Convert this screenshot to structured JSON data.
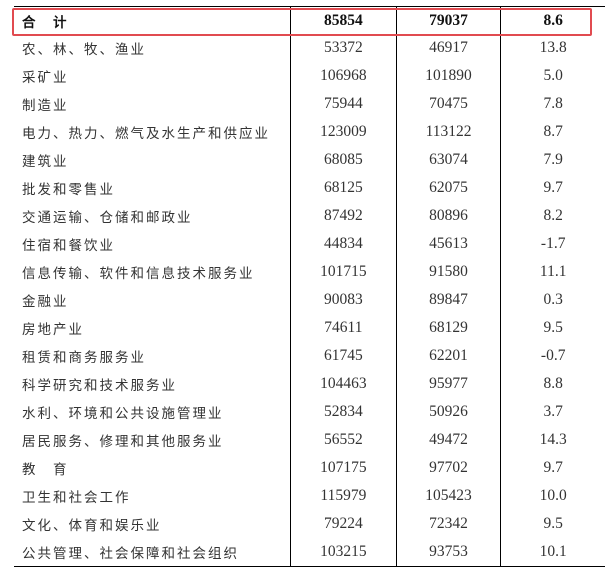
{
  "highlight_color": "#e14b50",
  "total": {
    "label": "合　计",
    "v2023": "85854",
    "v2022": "79037",
    "growth": "8.6"
  },
  "rows": [
    {
      "label": "农、林、牧、渔业",
      "v2023": "53372",
      "v2022": "46917",
      "growth": "13.8"
    },
    {
      "label": "采矿业",
      "v2023": "106968",
      "v2022": "101890",
      "growth": "5.0"
    },
    {
      "label": "制造业",
      "v2023": "75944",
      "v2022": "70475",
      "growth": "7.8"
    },
    {
      "label": "电力、热力、燃气及水生产和供应业",
      "v2023": "123009",
      "v2022": "113122",
      "growth": "8.7"
    },
    {
      "label": "建筑业",
      "v2023": "68085",
      "v2022": "63074",
      "growth": "7.9"
    },
    {
      "label": "批发和零售业",
      "v2023": "68125",
      "v2022": "62075",
      "growth": "9.7"
    },
    {
      "label": "交通运输、仓储和邮政业",
      "v2023": "87492",
      "v2022": "80896",
      "growth": "8.2"
    },
    {
      "label": "住宿和餐饮业",
      "v2023": "44834",
      "v2022": "45613",
      "growth": "-1.7"
    },
    {
      "label": "信息传输、软件和信息技术服务业",
      "v2023": "101715",
      "v2022": "91580",
      "growth": "11.1"
    },
    {
      "label": "金融业",
      "v2023": "90083",
      "v2022": "89847",
      "growth": "0.3"
    },
    {
      "label": "房地产业",
      "v2023": "74611",
      "v2022": "68129",
      "growth": "9.5"
    },
    {
      "label": "租赁和商务服务业",
      "v2023": "61745",
      "v2022": "62201",
      "growth": "-0.7"
    },
    {
      "label": "科学研究和技术服务业",
      "v2023": "104463",
      "v2022": "95977",
      "growth": "8.8"
    },
    {
      "label": "水利、环境和公共设施管理业",
      "v2023": "52834",
      "v2022": "50926",
      "growth": "3.7"
    },
    {
      "label": "居民服务、修理和其他服务业",
      "v2023": "56552",
      "v2022": "49472",
      "growth": "14.3"
    },
    {
      "label": "教　育",
      "v2023": "107175",
      "v2022": "97702",
      "growth": "9.7"
    },
    {
      "label": "卫生和社会工作",
      "v2023": "115979",
      "v2022": "105423",
      "growth": "10.0"
    },
    {
      "label": "文化、体育和娱乐业",
      "v2023": "79224",
      "v2022": "72342",
      "growth": "9.5"
    },
    {
      "label": "公共管理、社会保障和社会组织",
      "v2023": "103215",
      "v2022": "93753",
      "growth": "10.1"
    }
  ]
}
